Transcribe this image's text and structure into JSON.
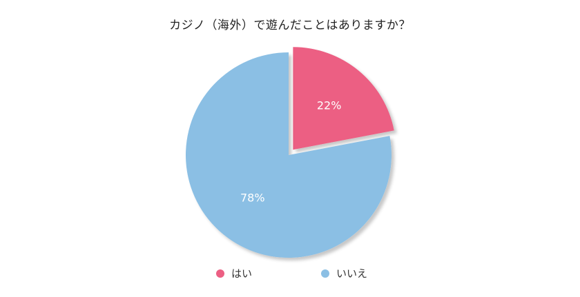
{
  "chart_data": {
    "type": "pie",
    "title": "カジノ（海外）で遊んだことはありますか？",
    "slices": [
      {
        "label": "はい",
        "value": 22,
        "value_label": "22%",
        "color": "#ec5f83",
        "exploded": true
      },
      {
        "label": "いいえ",
        "value": 78,
        "value_label": "78%",
        "color": "#8bbfe4",
        "exploded": false
      }
    ],
    "start_angle_deg": 0,
    "direction": "clockwise",
    "legend_position": "bottom",
    "shadow": true
  }
}
